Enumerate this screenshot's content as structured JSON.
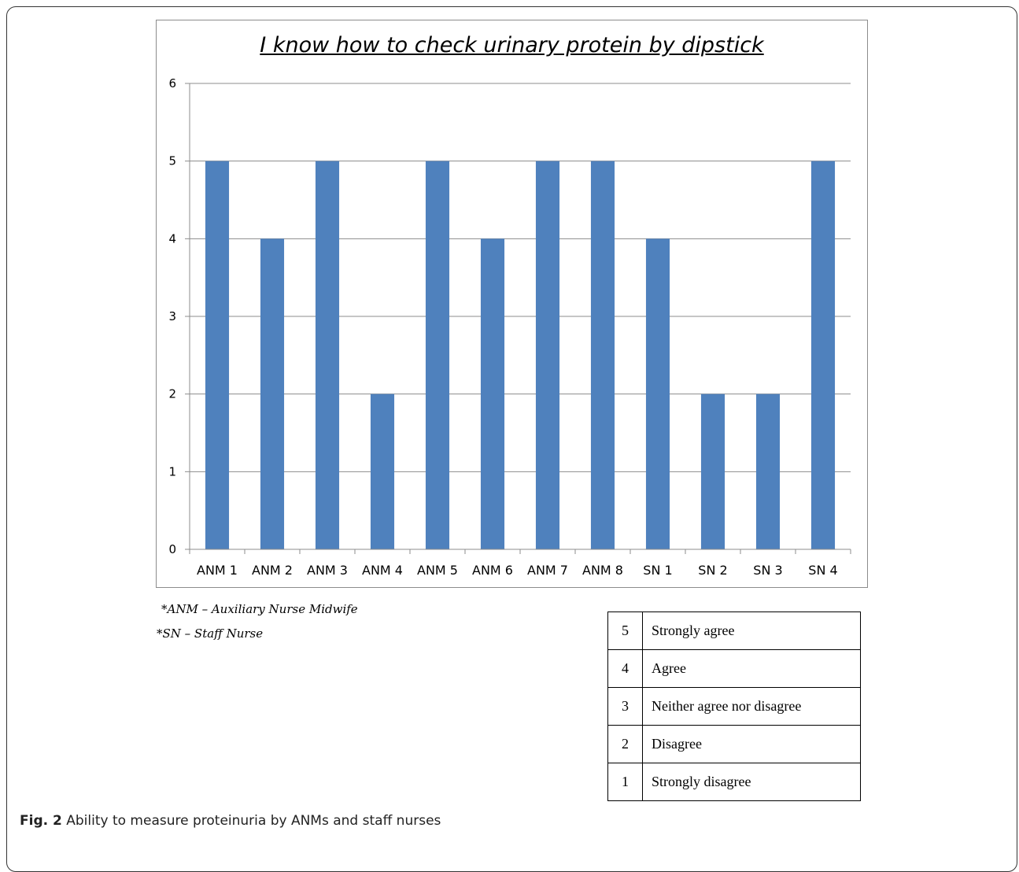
{
  "chart_data": {
    "type": "bar",
    "title": "I know how to check urinary protein by dipstick",
    "categories": [
      "ANM 1",
      "ANM 2",
      "ANM 3",
      "ANM 4",
      "ANM 5",
      "ANM 6",
      "ANM 7",
      "ANM 8",
      "SN 1",
      "SN 2",
      "SN 3",
      "SN 4"
    ],
    "values": [
      5,
      4,
      5,
      2,
      5,
      4,
      5,
      5,
      4,
      2,
      2,
      5
    ],
    "ylim": [
      0,
      6
    ],
    "yticks": [
      "0",
      "1",
      "2",
      "3",
      "4",
      "5",
      "6"
    ],
    "grid": true,
    "bar_color": "#4f81bd"
  },
  "footnotes": {
    "anm": "*ANM – Auxiliary Nurse Midwife",
    "sn": "*SN – Staff Nurse"
  },
  "scale": [
    {
      "value": "5",
      "label": "Strongly agree"
    },
    {
      "value": "4",
      "label": "Agree"
    },
    {
      "value": "3",
      "label": "Neither agree nor disagree"
    },
    {
      "value": "2",
      "label": "Disagree"
    },
    {
      "value": "1",
      "label": "Strongly disagree"
    }
  ],
  "caption": {
    "label": "Fig. 2",
    "text": " Ability to measure proteinuria by ANMs and staff nurses"
  }
}
